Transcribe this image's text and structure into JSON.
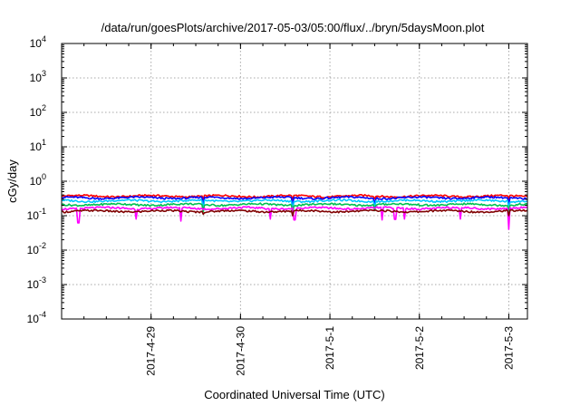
{
  "chart_data": {
    "type": "line",
    "title": "/data/run/goesPlots/archive/2017-05-03/05:00/flux/../bryn/5daysMoon.plot",
    "xlabel": "Coordinated Universal Time (UTC)",
    "ylabel": "cGy/day",
    "yscale": "log",
    "ylim": [
      0.0001,
      10000
    ],
    "y_ticks": [
      {
        "base": "10",
        "exp": "-4"
      },
      {
        "base": "10",
        "exp": "-3"
      },
      {
        "base": "10",
        "exp": "-2"
      },
      {
        "base": "10",
        "exp": "-1"
      },
      {
        "base": "10",
        "exp": "0"
      },
      {
        "base": "10",
        "exp": "1"
      },
      {
        "base": "10",
        "exp": "2"
      },
      {
        "base": "10",
        "exp": "3"
      },
      {
        "base": "10",
        "exp": "4"
      }
    ],
    "xlim": [
      "2017-04-28 00:00",
      "2017-05-03 05:00"
    ],
    "x_ticks": [
      "2017-4-29",
      "2017-4-30",
      "2017-5-1",
      "2017-5-2",
      "2017-5-3"
    ],
    "x_tick_values": [
      "2017-04-29",
      "2017-04-30",
      "2017-05-01",
      "2017-05-02",
      "2017-05-03"
    ],
    "grid": true,
    "legend": "none",
    "series": [
      {
        "color": "#ff0000",
        "level": 0.37,
        "dips": [
          [
            "2017-04-29 14:00",
            0.3
          ],
          [
            "2017-04-30 14:00",
            0.3
          ],
          [
            "2017-05-01 12:00",
            0.31
          ],
          [
            "2017-05-03 00:00",
            0.31
          ]
        ]
      },
      {
        "color": "#0000ff",
        "level": 0.33,
        "dips": [
          [
            "2017-04-29 14:00",
            0.2
          ],
          [
            "2017-04-30 14:00",
            0.19
          ],
          [
            "2017-05-01 12:00",
            0.22
          ],
          [
            "2017-05-03 00:00",
            0.21
          ]
        ]
      },
      {
        "color": "#00c8ff",
        "level": 0.27,
        "dips": [
          [
            "2017-04-29 14:00",
            0.15
          ],
          [
            "2017-04-30 14:00",
            0.14
          ],
          [
            "2017-05-01 12:00",
            0.17
          ],
          [
            "2017-05-03 00:00",
            0.16
          ]
        ]
      },
      {
        "color": "#00c050",
        "level": 0.21,
        "dips": [
          [
            "2017-04-29 14:00",
            0.13
          ],
          [
            "2017-04-30 14:00",
            0.12
          ],
          [
            "2017-05-01 12:00",
            0.14
          ],
          [
            "2017-05-03 00:00",
            0.13
          ]
        ]
      },
      {
        "color": "#ff00ff",
        "level": 0.165,
        "dips": [
          [
            "2017-04-28 04:30",
            0.062
          ],
          [
            "2017-04-28 20:00",
            0.08
          ],
          [
            "2017-04-29 08:00",
            0.07
          ],
          [
            "2017-04-30 08:00",
            0.08
          ],
          [
            "2017-04-30 14:30",
            0.075
          ],
          [
            "2017-05-01 14:00",
            0.075
          ],
          [
            "2017-05-01 17:30",
            0.078
          ],
          [
            "2017-05-01 20:00",
            0.08
          ],
          [
            "2017-05-02 11:00",
            0.08
          ],
          [
            "2017-05-03 00:00",
            0.04
          ]
        ]
      },
      {
        "color": "#800000",
        "level": 0.135,
        "dips": [
          [
            "2017-04-29 14:00",
            0.11
          ],
          [
            "2017-04-30 14:00",
            0.1
          ],
          [
            "2017-05-03 00:00",
            0.1
          ]
        ]
      }
    ]
  }
}
